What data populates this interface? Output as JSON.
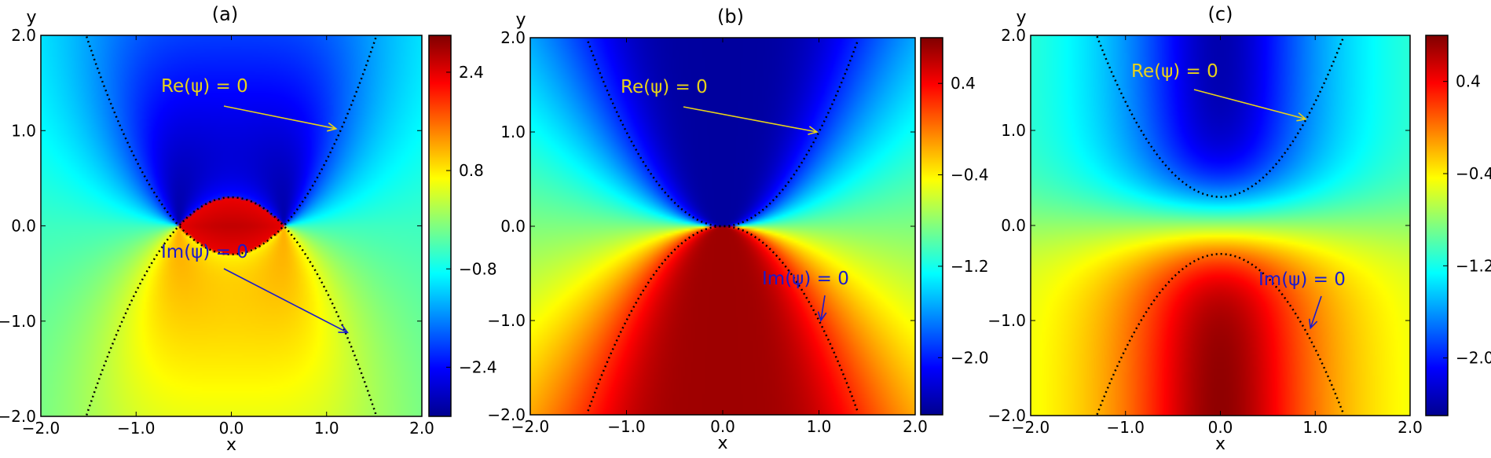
{
  "colors": {
    "annotation_re": "#e8d21a",
    "annotation_im": "#1a1acc",
    "curve": "#000000",
    "colormap": "jet"
  },
  "chart_data": [
    {
      "type": "heatmap",
      "title": "(a)",
      "xlabel": "x",
      "ylabel": "y",
      "xlim": [
        -2.0,
        2.0
      ],
      "ylim": [
        -2.0,
        2.0
      ],
      "xticks": [
        "−2.0",
        "−1.0",
        "0.0",
        "1.0",
        "2.0"
      ],
      "yticks": [
        "−2.0",
        "−1.0",
        "0.0",
        "1.0",
        "2.0"
      ],
      "colorbar": {
        "min": -3.2,
        "max": 3.0,
        "ticks": [
          "2.4",
          "0.8",
          "−0.8",
          "−2.4"
        ],
        "tick_values": [
          2.4,
          0.8,
          -0.8,
          -2.4
        ]
      },
      "curves": {
        "re_zero": {
          "vertex_y": 0.3,
          "x_root": 0.55
        },
        "im_zero": {
          "vertex_y": -0.3,
          "x_root": 0.55
        }
      },
      "annotations": {
        "re": {
          "text": "Re(ψ) = 0",
          "arrow_to": [
            1.1,
            1.02
          ]
        },
        "im": {
          "text": "Im(ψ) = 0",
          "arrow_to": [
            1.22,
            -1.12
          ]
        }
      }
    },
    {
      "type": "heatmap",
      "title": "(b)",
      "xlabel": "x",
      "ylabel": "y",
      "xlim": [
        -2.0,
        2.0
      ],
      "ylim": [
        -2.0,
        2.0
      ],
      "xticks": [
        "−2.0",
        "−1.0",
        "0.0",
        "1.0",
        "2.0"
      ],
      "yticks": [
        "−2.0",
        "−1.0",
        "0.0",
        "1.0",
        "2.0"
      ],
      "colorbar": {
        "min": -2.5,
        "max": 0.8,
        "ticks": [
          "0.4",
          "−0.4",
          "−1.2",
          "−2.0"
        ],
        "tick_values": [
          0.4,
          -0.4,
          -1.2,
          -2.0
        ]
      },
      "curves": {
        "re_zero": {
          "vertex_y": 0.0,
          "x_root": 0.0
        },
        "im_zero": {
          "vertex_y": 0.0,
          "x_root": 0.0
        }
      },
      "annotations": {
        "re": {
          "text": "Re(ψ) = 0",
          "arrow_to": [
            0.98,
            1.0
          ]
        },
        "im": {
          "text": "Im(ψ) = 0",
          "arrow_to": [
            1.02,
            -1.0
          ]
        }
      }
    },
    {
      "type": "heatmap",
      "title": "(c)",
      "xlabel": "x",
      "ylabel": "y",
      "xlim": [
        -2.0,
        2.0
      ],
      "ylim": [
        -2.0,
        2.0
      ],
      "xticks": [
        "−2.0",
        "−1.0",
        "0.0",
        "1.0",
        "2.0"
      ],
      "yticks": [
        "−2.0",
        "−1.0",
        "0.0",
        "1.0",
        "2.0"
      ],
      "colorbar": {
        "min": -2.5,
        "max": 0.8,
        "ticks": [
          "0.4",
          "−0.4",
          "−1.2",
          "−2.0"
        ],
        "tick_values": [
          0.4,
          -0.4,
          -1.2,
          -2.0
        ]
      },
      "curves": {
        "re_zero": {
          "vertex_y": 0.3,
          "x_root": 0.0
        },
        "im_zero": {
          "vertex_y": -0.3,
          "x_root": 0.0
        }
      },
      "annotations": {
        "re": {
          "text": "Re(ψ) = 0",
          "arrow_to": [
            0.9,
            1.12
          ]
        },
        "im": {
          "text": "Im(ψ) = 0",
          "arrow_to": [
            0.95,
            -1.08
          ]
        }
      }
    }
  ]
}
